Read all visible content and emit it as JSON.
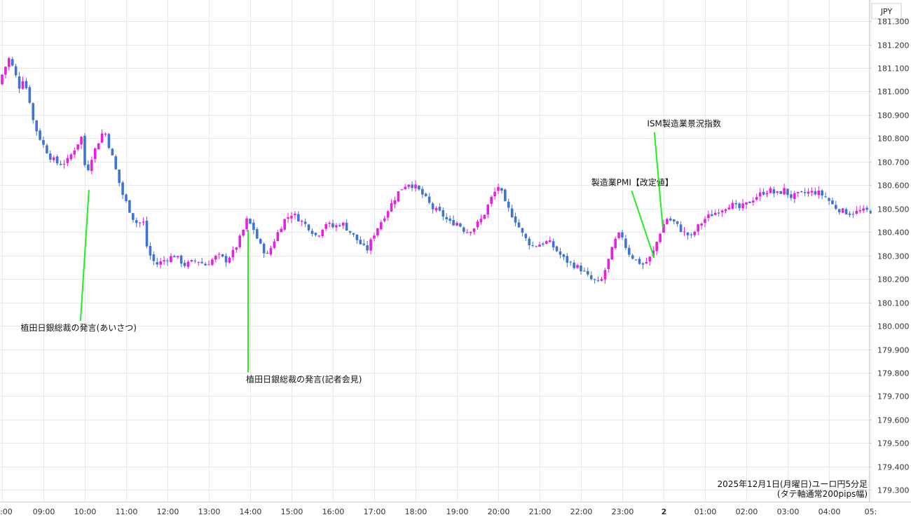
{
  "colors": {
    "up": "#e91ee0",
    "down": "#3f74d4",
    "grid": "#e6eaf0",
    "annotation_line": "#22ee22"
  },
  "chart_data": {
    "type": "candlestick",
    "currency": "JPY",
    "caption_line1": "2025年12月1日(月曜日)ユーロ円5分足",
    "caption_line2": "(タテ軸通常200pips幅)",
    "ylim": [
      179.25,
      181.39
    ],
    "y_ticks": [
      "181.300",
      "181.200",
      "181.100",
      "181.000",
      "180.900",
      "180.800",
      "180.700",
      "180.600",
      "180.500",
      "180.400",
      "180.300",
      "180.200",
      "180.100",
      "180.000",
      "179.900",
      "179.800",
      "179.700",
      "179.600",
      "179.500",
      "179.400",
      "179.300"
    ],
    "x_ticks": [
      {
        "label": ":00",
        "hour": 8
      },
      {
        "label": "09:00",
        "hour": 9
      },
      {
        "label": "10:00",
        "hour": 10
      },
      {
        "label": "11:00",
        "hour": 11
      },
      {
        "label": "12:00",
        "hour": 12
      },
      {
        "label": "13:00",
        "hour": 13
      },
      {
        "label": "14:00",
        "hour": 14
      },
      {
        "label": "15:00",
        "hour": 15
      },
      {
        "label": "16:00",
        "hour": 16
      },
      {
        "label": "17:00",
        "hour": 17
      },
      {
        "label": "18:00",
        "hour": 18
      },
      {
        "label": "19:00",
        "hour": 19
      },
      {
        "label": "20:00",
        "hour": 20
      },
      {
        "label": "21:00",
        "hour": 21
      },
      {
        "label": "22:00",
        "hour": 22
      },
      {
        "label": "23:00",
        "hour": 23
      },
      {
        "label": "2",
        "hour": 24,
        "bold": true
      },
      {
        "label": "01:00",
        "hour": 25
      },
      {
        "label": "02:00",
        "hour": 26
      },
      {
        "label": "03:00",
        "hour": 27
      },
      {
        "label": "04:00",
        "hour": 28
      },
      {
        "label": "05:",
        "hour": 29
      }
    ],
    "annotations": [
      {
        "label": "植田日銀総裁の発言(あいさつ)",
        "hour": 10.1,
        "price": 180.58,
        "text_hour": 8.45,
        "text_price": 179.98
      },
      {
        "label": "植田日銀総裁の発言(記者会見)",
        "hour": 13.95,
        "price": 180.41,
        "text_hour": 13.9,
        "text_price": 179.76
      },
      {
        "label": "製造業PMI【改定値】",
        "hour": 23.77,
        "price": 180.29,
        "text_hour": 22.25,
        "text_price": 180.6
      },
      {
        "label": "ISM製造業景況指数",
        "hour": 23.98,
        "price": 180.42,
        "text_hour": 23.6,
        "text_price": 180.85
      }
    ],
    "anchors": [
      [
        8.0,
        181.03
      ],
      [
        8.1,
        181.08
      ],
      [
        8.25,
        181.14
      ],
      [
        8.35,
        181.1
      ],
      [
        8.5,
        181.02
      ],
      [
        8.6,
        181.06
      ],
      [
        8.75,
        180.96
      ],
      [
        8.85,
        180.86
      ],
      [
        9.05,
        180.78
      ],
      [
        9.25,
        180.72
      ],
      [
        9.45,
        180.69
      ],
      [
        9.65,
        180.7
      ],
      [
        9.85,
        180.76
      ],
      [
        10.05,
        180.82
      ],
      [
        10.1,
        180.62
      ],
      [
        10.2,
        180.7
      ],
      [
        10.4,
        180.78
      ],
      [
        10.55,
        180.84
      ],
      [
        10.75,
        180.72
      ],
      [
        10.9,
        180.62
      ],
      [
        11.0,
        180.56
      ],
      [
        11.15,
        180.5
      ],
      [
        11.3,
        180.44
      ],
      [
        11.5,
        180.44
      ],
      [
        11.6,
        180.32
      ],
      [
        11.8,
        180.26
      ],
      [
        12.0,
        180.28
      ],
      [
        12.25,
        180.3
      ],
      [
        12.5,
        180.26
      ],
      [
        12.8,
        180.28
      ],
      [
        13.0,
        180.26
      ],
      [
        13.3,
        180.3
      ],
      [
        13.5,
        180.28
      ],
      [
        13.7,
        180.32
      ],
      [
        13.9,
        180.4
      ],
      [
        14.0,
        180.45
      ],
      [
        14.15,
        180.42
      ],
      [
        14.3,
        180.35
      ],
      [
        14.5,
        180.3
      ],
      [
        14.7,
        180.38
      ],
      [
        14.9,
        180.45
      ],
      [
        15.1,
        180.48
      ],
      [
        15.3,
        180.45
      ],
      [
        15.5,
        180.42
      ],
      [
        15.7,
        180.38
      ],
      [
        15.9,
        180.44
      ],
      [
        16.1,
        180.42
      ],
      [
        16.3,
        180.44
      ],
      [
        16.5,
        180.4
      ],
      [
        16.7,
        180.36
      ],
      [
        16.9,
        180.32
      ],
      [
        17.1,
        180.4
      ],
      [
        17.3,
        180.46
      ],
      [
        17.5,
        180.52
      ],
      [
        17.7,
        180.58
      ],
      [
        17.9,
        180.61
      ],
      [
        18.1,
        180.59
      ],
      [
        18.3,
        180.55
      ],
      [
        18.5,
        180.5
      ],
      [
        18.7,
        180.48
      ],
      [
        18.9,
        180.44
      ],
      [
        19.1,
        180.44
      ],
      [
        19.3,
        180.4
      ],
      [
        19.5,
        180.42
      ],
      [
        19.7,
        180.46
      ],
      [
        19.9,
        180.54
      ],
      [
        20.1,
        180.6
      ],
      [
        20.25,
        180.52
      ],
      [
        20.5,
        180.45
      ],
      [
        20.7,
        180.38
      ],
      [
        20.9,
        180.34
      ],
      [
        21.1,
        180.35
      ],
      [
        21.3,
        180.36
      ],
      [
        21.5,
        180.32
      ],
      [
        21.7,
        180.28
      ],
      [
        21.9,
        180.26
      ],
      [
        22.1,
        180.24
      ],
      [
        22.3,
        180.2
      ],
      [
        22.55,
        180.18
      ],
      [
        22.75,
        180.28
      ],
      [
        22.9,
        180.36
      ],
      [
        23.05,
        180.4
      ],
      [
        23.2,
        180.32
      ],
      [
        23.4,
        180.28
      ],
      [
        23.6,
        180.26
      ],
      [
        23.8,
        180.3
      ],
      [
        24.0,
        180.4
      ],
      [
        24.15,
        180.46
      ],
      [
        24.35,
        180.44
      ],
      [
        24.55,
        180.4
      ],
      [
        24.75,
        180.38
      ],
      [
        24.9,
        180.42
      ],
      [
        25.1,
        180.46
      ],
      [
        25.3,
        180.48
      ],
      [
        25.5,
        180.5
      ],
      [
        25.7,
        180.52
      ],
      [
        25.9,
        180.5
      ],
      [
        26.1,
        180.52
      ],
      [
        26.3,
        180.55
      ],
      [
        26.5,
        180.57
      ],
      [
        26.65,
        180.58
      ],
      [
        26.8,
        180.56
      ],
      [
        27.0,
        180.58
      ],
      [
        27.15,
        180.55
      ],
      [
        27.35,
        180.56
      ],
      [
        27.6,
        180.57
      ],
      [
        27.8,
        180.57
      ],
      [
        28.0,
        180.55
      ],
      [
        28.2,
        180.51
      ],
      [
        28.4,
        180.49
      ],
      [
        28.6,
        180.48
      ],
      [
        28.85,
        180.49
      ]
    ]
  }
}
